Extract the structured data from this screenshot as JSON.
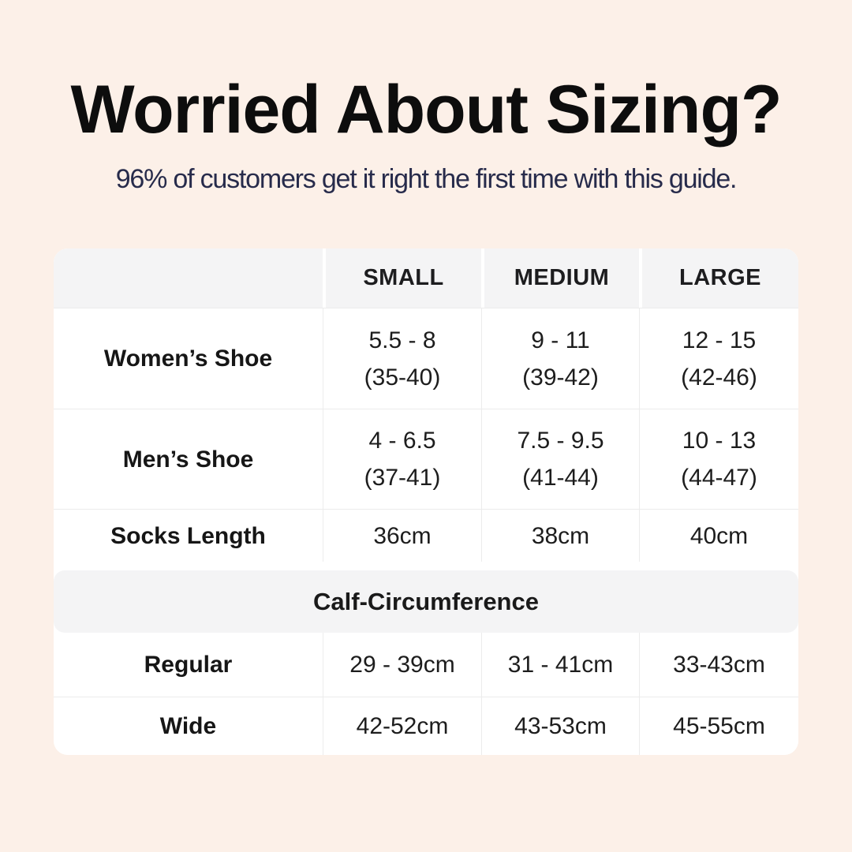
{
  "colors": {
    "background": "#fcf0e8",
    "table_background": "#ffffff",
    "header_fill": "#f4f4f5",
    "border": "#ececec",
    "title_text": "#0d0d0d",
    "subtitle_text": "#272b4b",
    "table_text": "#1d1d1d"
  },
  "header": {
    "title": "Worried About Sizing?",
    "subtitle": "96% of customers get it right the first time with this guide."
  },
  "table": {
    "column_headers": [
      "SMALL",
      "MEDIUM",
      "LARGE"
    ],
    "shoe_rows": [
      {
        "label": "Women’s Shoe",
        "small": [
          "5.5 - 8",
          "(35-40)"
        ],
        "medium": [
          "9 - 11",
          "(39-42)"
        ],
        "large": [
          "12 - 15",
          "(42-46)"
        ]
      },
      {
        "label": "Men’s Shoe",
        "small": [
          "4 - 6.5",
          "(37-41)"
        ],
        "medium": [
          "7.5 - 9.5",
          "(41-44)"
        ],
        "large": [
          "10 - 13",
          "(44-47)"
        ]
      }
    ],
    "socks_row": {
      "label": "Socks Length",
      "small": "36cm",
      "medium": "38cm",
      "large": "40cm"
    },
    "section_header": "Calf-Circumference",
    "calf_rows": [
      {
        "label": "Regular",
        "small": "29 - 39cm",
        "medium": "31 - 41cm",
        "large": "33-43cm"
      },
      {
        "label": "Wide",
        "small": "42-52cm",
        "medium": "43-53cm",
        "large": "45-55cm"
      }
    ]
  }
}
